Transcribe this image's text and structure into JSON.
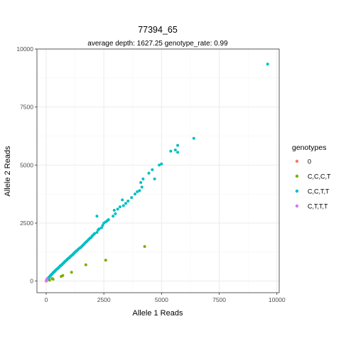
{
  "chart_data": {
    "type": "scatter",
    "title": "77394_65",
    "subtitle": "average depth:  1627.25  genotype_rate:  0.99",
    "xlabel": "Allele 1 Reads",
    "ylabel": "Allele 2 Reads",
    "xlim": [
      -400,
      10100
    ],
    "ylim": [
      -500,
      10000
    ],
    "xticks": [
      0,
      2500,
      5000,
      7500,
      10000
    ],
    "yticks": [
      0,
      2500,
      5000,
      7500,
      10000
    ],
    "grid": true,
    "legend_position": "right",
    "legend_title": "genotypes",
    "series": [
      {
        "name": "0",
        "color": "#F8766D",
        "points": [
          [
            0,
            0
          ],
          [
            10,
            5
          ]
        ]
      },
      {
        "name": "C,C,C,T",
        "color": "#7CAE00",
        "points": [
          [
            150,
            40
          ],
          [
            260,
            110
          ],
          [
            300,
            80
          ],
          [
            650,
            200
          ],
          [
            720,
            240
          ],
          [
            1100,
            380
          ],
          [
            1720,
            700
          ],
          [
            2580,
            900
          ],
          [
            4270,
            1490
          ]
        ]
      },
      {
        "name": "C,C,T,T",
        "color": "#00BFC4",
        "points": [
          [
            40,
            60
          ],
          [
            60,
            90
          ],
          [
            80,
            120
          ],
          [
            100,
            140
          ],
          [
            120,
            150
          ],
          [
            140,
            180
          ],
          [
            160,
            200
          ],
          [
            180,
            230
          ],
          [
            200,
            250
          ],
          [
            220,
            270
          ],
          [
            250,
            300
          ],
          [
            280,
            330
          ],
          [
            300,
            360
          ],
          [
            320,
            380
          ],
          [
            350,
            400
          ],
          [
            380,
            430
          ],
          [
            400,
            460
          ],
          [
            430,
            480
          ],
          [
            460,
            510
          ],
          [
            500,
            540
          ],
          [
            520,
            560
          ],
          [
            550,
            590
          ],
          [
            580,
            620
          ],
          [
            610,
            650
          ],
          [
            640,
            680
          ],
          [
            680,
            700
          ],
          [
            700,
            730
          ],
          [
            740,
            770
          ],
          [
            780,
            800
          ],
          [
            800,
            830
          ],
          [
            830,
            860
          ],
          [
            860,
            880
          ],
          [
            900,
            920
          ],
          [
            930,
            950
          ],
          [
            960,
            980
          ],
          [
            1000,
            1000
          ],
          [
            1030,
            1040
          ],
          [
            1060,
            1070
          ],
          [
            1100,
            1100
          ],
          [
            1140,
            1130
          ],
          [
            1170,
            1160
          ],
          [
            1200,
            1190
          ],
          [
            1230,
            1230
          ],
          [
            1270,
            1260
          ],
          [
            1300,
            1290
          ],
          [
            1350,
            1330
          ],
          [
            1400,
            1380
          ],
          [
            1450,
            1420
          ],
          [
            1500,
            1450
          ],
          [
            1550,
            1500
          ],
          [
            1600,
            1550
          ],
          [
            1650,
            1600
          ],
          [
            1700,
            1660
          ],
          [
            1750,
            1700
          ],
          [
            1800,
            1750
          ],
          [
            1850,
            1800
          ],
          [
            1900,
            1850
          ],
          [
            1950,
            1880
          ],
          [
            2000,
            1950
          ],
          [
            2050,
            2000
          ],
          [
            2100,
            2050
          ],
          [
            2200,
            2100
          ],
          [
            2250,
            2200
          ],
          [
            2300,
            2250
          ],
          [
            2400,
            2300
          ],
          [
            2450,
            2400
          ],
          [
            2500,
            2500
          ],
          [
            2580,
            2550
          ],
          [
            2650,
            2600
          ],
          [
            2700,
            2650
          ],
          [
            2200,
            2800
          ],
          [
            2900,
            2800
          ],
          [
            3000,
            2900
          ],
          [
            3100,
            3100
          ],
          [
            3200,
            3200
          ],
          [
            2950,
            3050
          ],
          [
            3350,
            3250
          ],
          [
            3450,
            3350
          ],
          [
            3550,
            3450
          ],
          [
            3300,
            3500
          ],
          [
            3700,
            3600
          ],
          [
            3850,
            3750
          ],
          [
            3950,
            3850
          ],
          [
            4050,
            3900
          ],
          [
            4150,
            4050
          ],
          [
            4100,
            4250
          ],
          [
            4200,
            4400
          ],
          [
            4700,
            4400
          ],
          [
            4450,
            4650
          ],
          [
            4600,
            4800
          ],
          [
            4900,
            5000
          ],
          [
            5000,
            5050
          ],
          [
            5400,
            5600
          ],
          [
            5600,
            5650
          ],
          [
            5700,
            5850
          ],
          [
            5700,
            5550
          ],
          [
            6400,
            6150
          ],
          [
            9600,
            9350
          ]
        ]
      },
      {
        "name": "C,T,T,T",
        "color": "#C77CFF",
        "points": [
          [
            10,
            20
          ],
          [
            20,
            40
          ],
          [
            25,
            50
          ],
          [
            30,
            70
          ],
          [
            35,
            80
          ],
          [
            40,
            100
          ]
        ]
      }
    ]
  }
}
